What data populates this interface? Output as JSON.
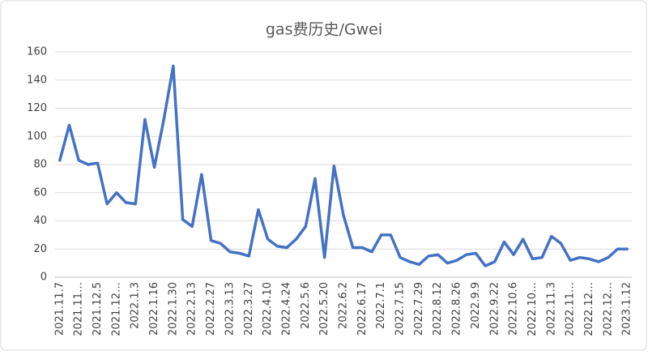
{
  "chart_data": {
    "type": "line",
    "title": "gas费历史/Gwei",
    "categories": [
      "2021.11.7",
      null,
      "2021.11…",
      null,
      "2021.12.5",
      null,
      "2021.12…",
      null,
      "2022.1.3",
      null,
      "2022.1.16",
      null,
      "2022.1.30",
      null,
      "2022.2.13",
      null,
      "2022.2.27",
      null,
      "2022.3.13",
      null,
      "2022.3.27",
      null,
      "2022.4.10",
      null,
      "2022.4.24",
      null,
      "2022.5.6",
      null,
      "2022.5.20",
      null,
      "2022.6.2",
      null,
      "2022.6.17",
      null,
      "2022.7.1",
      null,
      "2022.7.15",
      null,
      "2022.7.29",
      null,
      "2022.8.12",
      null,
      "2022.8.26",
      null,
      "2022.9.9",
      null,
      "2022.9.22",
      null,
      "2022.10.6",
      null,
      "2022.10…",
      null,
      "2022.11.3",
      null,
      "2022.11…",
      null,
      "2022.12…",
      null,
      "2022.12…",
      null,
      "2023.1.12"
    ],
    "values": [
      83,
      108,
      83,
      80,
      81,
      52,
      60,
      53,
      52,
      112,
      78,
      112,
      150,
      41,
      36,
      73,
      26,
      24,
      18,
      17,
      15,
      48,
      27,
      22,
      21,
      27,
      36,
      70,
      14,
      79,
      44,
      21,
      21,
      18,
      30,
      30,
      14,
      11,
      9,
      15,
      16,
      10,
      12,
      16,
      17,
      8,
      11,
      25,
      16,
      27,
      13,
      14,
      29,
      24,
      12,
      14,
      13,
      11,
      14,
      20,
      20
    ],
    "color": "#4472c4",
    "ylim": [
      0,
      160
    ],
    "yticks": [
      0,
      20,
      40,
      60,
      80,
      100,
      120,
      140,
      160
    ],
    "grid": true
  }
}
